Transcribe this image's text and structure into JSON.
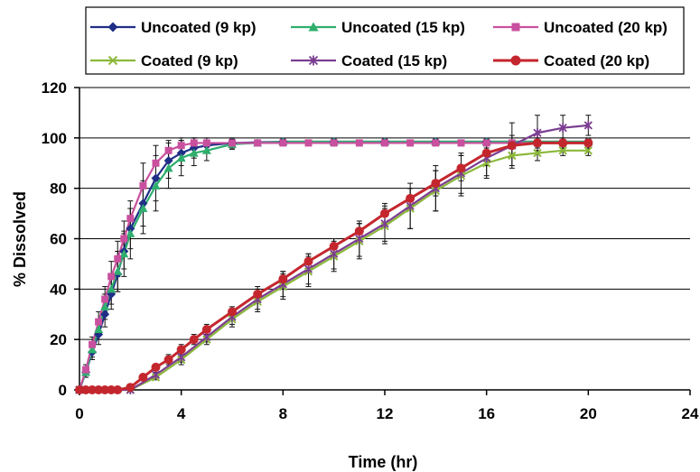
{
  "chart_data": {
    "type": "line",
    "xlabel": "Time (hr)",
    "ylabel": "% Dissolved",
    "xlim": [
      0,
      24
    ],
    "ylim": [
      0,
      120
    ],
    "xticks": [
      0,
      4,
      8,
      12,
      16,
      20,
      24
    ],
    "yticks": [
      0,
      20,
      40,
      60,
      80,
      100,
      120
    ],
    "grid": "horizontal",
    "legend_position": "top",
    "series": [
      {
        "name": "Uncoated (9 kp)",
        "color": "#1f2f86",
        "marker": "diamond",
        "x": [
          0,
          0.25,
          0.5,
          0.75,
          1,
          1.25,
          1.5,
          1.75,
          2,
          2.5,
          3,
          3.5,
          4,
          4.5,
          5,
          6,
          8,
          10,
          12,
          14,
          16,
          20
        ],
        "y": [
          0,
          7,
          15,
          22,
          30,
          38,
          46,
          55,
          64,
          74,
          84,
          91,
          94,
          96,
          97,
          98,
          98.5,
          98.5,
          98.5,
          98.5,
          98.5,
          98.5
        ],
        "err": [
          0,
          2,
          3,
          4,
          5,
          6,
          7,
          7,
          8,
          9,
          9,
          7,
          5,
          4,
          3,
          2,
          1,
          1,
          1,
          1,
          1,
          1
        ]
      },
      {
        "name": "Uncoated (15 kp)",
        "color": "#2fae6e",
        "marker": "triangle",
        "x": [
          0,
          0.25,
          0.5,
          0.75,
          1,
          1.25,
          1.5,
          1.75,
          2,
          2.5,
          3,
          3.5,
          4,
          4.5,
          5,
          6,
          7,
          8,
          10,
          12,
          14,
          16,
          20
        ],
        "y": [
          0,
          7,
          16,
          24,
          33,
          40,
          47,
          54,
          62,
          72,
          81,
          88,
          92,
          94,
          95,
          97.5,
          98,
          98.5,
          98.5,
          98.5,
          98.5,
          98.5,
          98.5
        ],
        "err": [
          0,
          2,
          3,
          4,
          5,
          6,
          8,
          9,
          10,
          10,
          10,
          8,
          7,
          5,
          4,
          2,
          1,
          1,
          1,
          1,
          1,
          1,
          1
        ]
      },
      {
        "name": "Uncoated (20 kp)",
        "color": "#c9509e",
        "marker": "square",
        "x": [
          0,
          0.25,
          0.5,
          0.75,
          1,
          1.25,
          1.5,
          1.75,
          2,
          2.5,
          3,
          3.5,
          4,
          4.5,
          5,
          6,
          7,
          8,
          9,
          10,
          11,
          12,
          13,
          14,
          15,
          16,
          17,
          18,
          19,
          20
        ],
        "y": [
          0,
          8,
          18,
          27,
          36,
          45,
          52,
          60,
          68,
          81,
          90,
          95,
          97,
          98,
          98,
          98,
          98,
          98,
          98,
          98,
          98,
          98,
          98,
          98,
          98,
          98,
          98,
          98,
          98,
          98
        ],
        "err": [
          0,
          2,
          3,
          4,
          5,
          6,
          7,
          7,
          7,
          9,
          7,
          4,
          3,
          2,
          1,
          1,
          1,
          1,
          1,
          1,
          1,
          1,
          1,
          1,
          1,
          1,
          1,
          1,
          1,
          1
        ]
      },
      {
        "name": "Coated (9 kp)",
        "color": "#8cb83a",
        "marker": "x",
        "x": [
          0,
          2,
          3,
          4,
          5,
          6,
          7,
          8,
          9,
          10,
          11,
          12,
          13,
          14,
          15,
          16,
          17,
          18,
          19,
          20
        ],
        "y": [
          0,
          0,
          5,
          12,
          20,
          28,
          35,
          41,
          47,
          53,
          59,
          65,
          72,
          79,
          85,
          90,
          93,
          94,
          95,
          95
        ],
        "err": [
          0,
          0,
          1,
          2,
          2,
          3,
          4,
          5,
          6,
          6,
          7,
          7,
          8,
          8,
          8,
          6,
          4,
          3,
          2,
          2
        ]
      },
      {
        "name": "Coated (15 kp)",
        "color": "#7b3d91",
        "marker": "star",
        "x": [
          0,
          2,
          3,
          4,
          5,
          6,
          7,
          8,
          9,
          10,
          11,
          12,
          13,
          14,
          15,
          16,
          17,
          18,
          19,
          20
        ],
        "y": [
          0,
          0,
          6,
          13,
          21,
          29,
          36,
          42,
          48,
          54,
          60,
          66,
          73,
          80,
          86,
          92,
          97,
          102,
          104,
          105
        ],
        "err": [
          0,
          0,
          1,
          2,
          2,
          3,
          4,
          5,
          6,
          6,
          7,
          7,
          9,
          9,
          8,
          7,
          9,
          7,
          5,
          4
        ]
      },
      {
        "name": "Coated (20 kp)",
        "color": "#c4262e",
        "marker": "circle",
        "x": [
          0,
          0.25,
          0.5,
          0.75,
          1,
          1.25,
          1.5,
          2,
          2.5,
          3,
          3.5,
          4,
          4.5,
          5,
          6,
          7,
          8,
          9,
          10,
          11,
          12,
          13,
          14,
          15,
          16,
          17,
          18,
          19,
          20
        ],
        "y": [
          0,
          0,
          0,
          0,
          0,
          0,
          0,
          1,
          5,
          9,
          12,
          16,
          20,
          24,
          31,
          38,
          44,
          51,
          57,
          63,
          70,
          76,
          82,
          88,
          94,
          97,
          98,
          98,
          98
        ],
        "err": [
          0,
          0,
          0,
          0,
          0,
          0,
          0,
          1,
          1,
          1,
          2,
          2,
          2,
          2,
          2,
          3,
          3,
          3,
          3,
          3,
          4,
          4,
          5,
          5,
          5,
          4,
          2,
          2,
          2
        ]
      }
    ]
  }
}
